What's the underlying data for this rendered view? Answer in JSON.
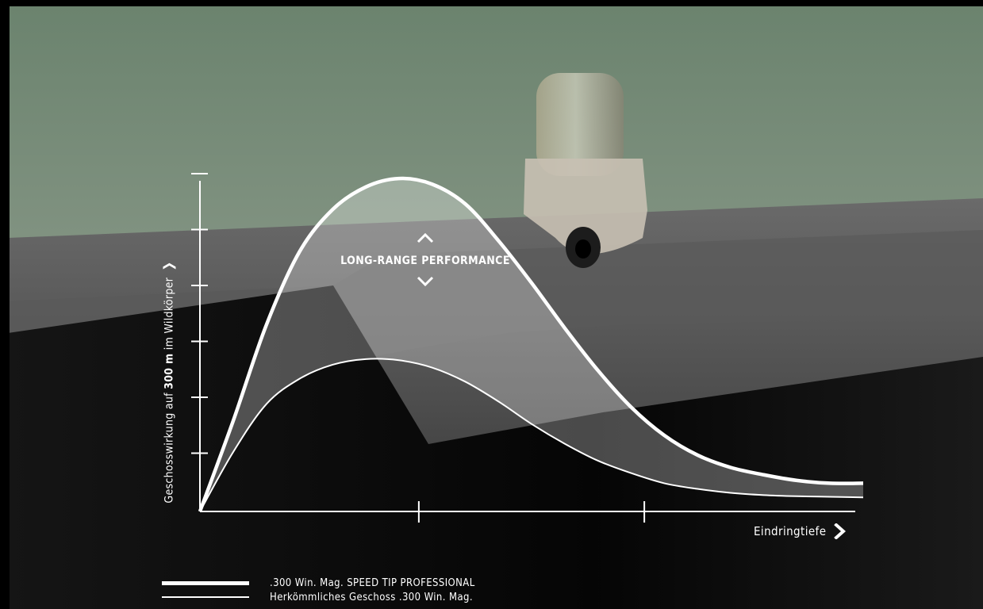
{
  "chart_data": {
    "type": "line",
    "ylabel_prefix": "Geschosswirkung auf ",
    "ylabel_bold": "300 m",
    "ylabel_suffix": " im Wildkörper",
    "xlabel": "Eindringtiefe",
    "annotation": "LONG-RANGE PERFORMANCE",
    "xlim": [
      0,
      10
    ],
    "ylim": [
      0,
      6
    ],
    "x_ticks": [
      3.3,
      6.7
    ],
    "y_ticks": [
      1,
      2,
      3,
      4,
      5,
      6
    ],
    "series": [
      {
        "name": ".300 Win. Mag. SPEED TIP PROFESSIONAL",
        "x": [
          0,
          0.5,
          1.0,
          1.5,
          2.0,
          2.5,
          3.0,
          3.5,
          4.0,
          4.5,
          5.0,
          5.5,
          6.0,
          6.5,
          7.0,
          7.5,
          8.0,
          8.5,
          9.0,
          9.5,
          10.0
        ],
        "y": [
          0,
          1.6,
          3.3,
          4.6,
          5.35,
          5.75,
          5.9,
          5.8,
          5.45,
          4.8,
          4.05,
          3.25,
          2.5,
          1.85,
          1.35,
          1.0,
          0.78,
          0.65,
          0.55,
          0.5,
          0.5
        ]
      },
      {
        "name": "Herkömmliches Geschoss .300 Win. Mag.",
        "x": [
          0,
          0.5,
          1.0,
          1.5,
          2.0,
          2.5,
          3.0,
          3.5,
          4.0,
          4.5,
          5.0,
          5.5,
          6.0,
          6.5,
          7.0,
          7.5,
          8.0,
          8.5,
          9.0,
          9.5,
          10.0
        ],
        "y": [
          0,
          1.05,
          1.9,
          2.35,
          2.6,
          2.7,
          2.68,
          2.55,
          2.3,
          1.95,
          1.55,
          1.2,
          0.9,
          0.68,
          0.5,
          0.4,
          0.33,
          0.29,
          0.27,
          0.26,
          0.25
        ]
      }
    ]
  },
  "colors": {
    "sky_top": "#6d8470",
    "sky_bottom": "#9ba597",
    "stone": "#4b4b4b",
    "shadow": "#101010",
    "line": "#ffffff"
  },
  "legend": [
    {
      "label": ".300 Win. Mag. SPEED TIP PROFESSIONAL"
    },
    {
      "label": "Herkömmliches Geschoss .300 Win. Mag."
    }
  ]
}
